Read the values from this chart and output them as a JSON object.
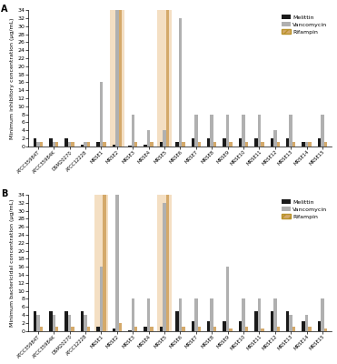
{
  "categories": [
    "ATCC35984T",
    "ATCC35984K",
    "DSM20270",
    "ATCC12228",
    "MRSE1",
    "MRSE2",
    "MRSE3",
    "MRSE4",
    "MRSE5",
    "MRSE6",
    "MRSE7",
    "MRSE8",
    "MRSE9",
    "MRSE10",
    "MRSE11",
    "MRSE12",
    "MRSE13",
    "MRSE14",
    "MRSE15"
  ],
  "panel_A": {
    "melittin": [
      2,
      2,
      2,
      0.5,
      1,
      0.5,
      0.25,
      0.5,
      1,
      1,
      2,
      2,
      2,
      2,
      2,
      2,
      2,
      1,
      2
    ],
    "vancomycin": [
      1,
      1,
      1,
      1,
      16,
      34,
      8,
      4,
      4,
      32,
      8,
      8,
      8,
      8,
      8,
      4,
      8,
      1,
      8
    ],
    "rifampin": [
      1,
      1,
      1,
      1,
      1,
      34,
      1,
      1,
      34,
      1,
      1,
      1,
      1,
      1,
      1,
      1,
      1,
      1,
      1
    ]
  },
  "panel_B": {
    "melittin": [
      5,
      5,
      5,
      5,
      1,
      0.5,
      0.25,
      1,
      1,
      5,
      2.5,
      2.5,
      2.5,
      2.5,
      5,
      5,
      5,
      2.5,
      2.5
    ],
    "vancomycin": [
      4,
      4,
      4,
      4,
      16,
      34,
      8,
      8,
      32,
      8,
      8,
      8,
      16,
      8,
      8,
      8,
      4,
      4,
      8
    ],
    "rifampin": [
      1,
      1,
      1,
      1,
      34,
      2,
      1,
      1,
      34,
      1,
      1,
      1,
      0.5,
      1,
      0.5,
      1,
      1,
      1,
      0.5
    ]
  },
  "melittin_color": "#1a1a1a",
  "vancomycin_color": "#b0b0b0",
  "rifampin_color": "#d4a96a",
  "rifampin_edge_color": "#b8922a",
  "highlight_color": "#e8b87a",
  "highlight_alpha": 0.45,
  "highlight_indices_A": [
    5,
    8
  ],
  "highlight_indices_B": [
    4,
    8
  ],
  "ylim": [
    0,
    34
  ],
  "yticks": [
    0,
    2,
    4,
    6,
    8,
    10,
    12,
    14,
    16,
    18,
    20,
    22,
    24,
    26,
    28,
    30,
    32,
    34
  ],
  "ylabel_A": "Minimum inhibitory concentration (μg/mL)",
  "ylabel_B": "Minimum bactericidal concentration (μg/mL)",
  "label_A": "A",
  "label_B": "B",
  "legend_labels": [
    "Melittin",
    "Vancomycin",
    "Rifampin"
  ],
  "bar_width": 0.2,
  "figsize": [
    3.71,
    4.0
  ],
  "dpi": 100
}
